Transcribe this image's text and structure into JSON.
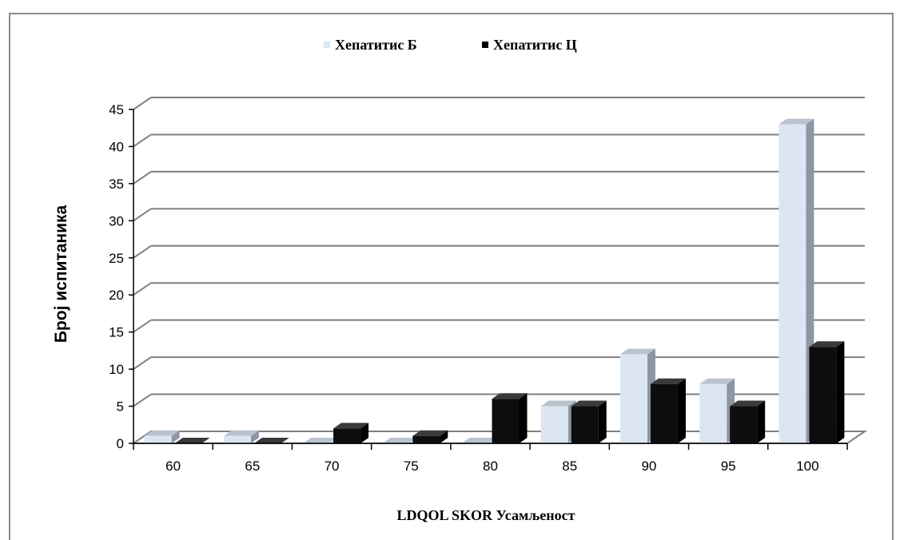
{
  "chart_data": {
    "type": "bar",
    "categories": [
      "60",
      "65",
      "70",
      "75",
      "80",
      "85",
      "90",
      "95",
      "100"
    ],
    "series": [
      {
        "name": "Хепатитис Б",
        "values": [
          1,
          1,
          0,
          0,
          0,
          5,
          12,
          8,
          43
        ]
      },
      {
        "name": "Хепатитис Ц",
        "values": [
          0,
          0,
          2,
          1,
          6,
          5,
          8,
          5,
          13
        ]
      }
    ],
    "y_ticks": [
      "0",
      "5",
      "10",
      "15",
      "20",
      "25",
      "30",
      "35",
      "40",
      "45"
    ],
    "xlabel": "LDQOL SKOR  Усамљеност",
    "ylabel": "Број испитаника",
    "ylim": [
      0,
      45
    ],
    "grid": true,
    "legend_position": "top",
    "colors": {
      "series_b_front": "#dce6f2",
      "series_b_side": "#8e96a1",
      "series_b_top": "#b9c3cf",
      "series_c_front": "#0d0d0d",
      "series_c_side": "#000000",
      "series_c_top": "#3a3a3a",
      "grid": "#7f7f7f"
    }
  }
}
